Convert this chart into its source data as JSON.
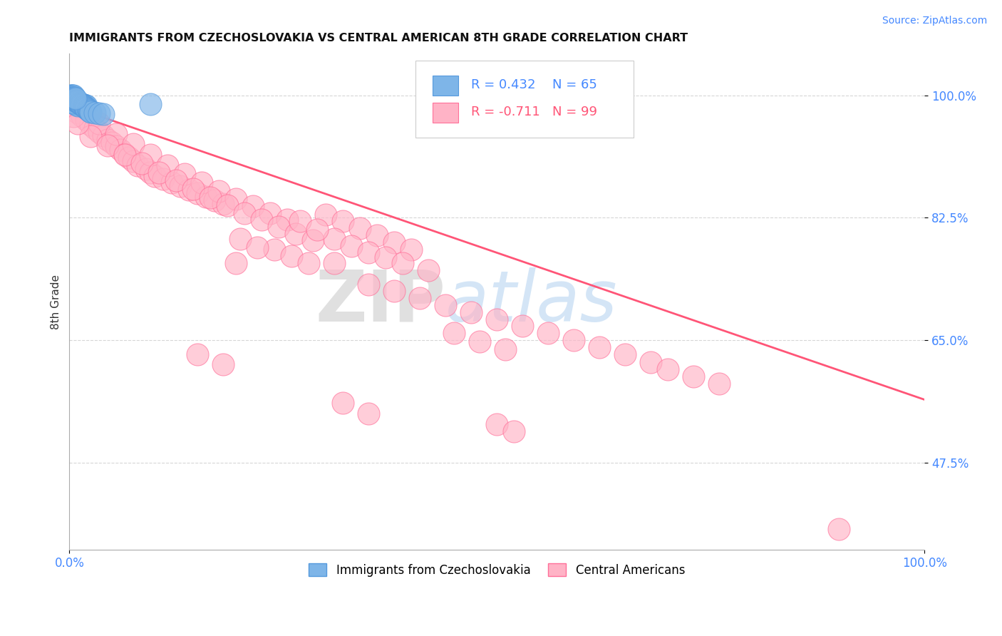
{
  "title": "IMMIGRANTS FROM CZECHOSLOVAKIA VS CENTRAL AMERICAN 8TH GRADE CORRELATION CHART",
  "source": "Source: ZipAtlas.com",
  "ylabel": "8th Grade",
  "xlim": [
    0.0,
    1.0
  ],
  "ylim": [
    0.35,
    1.06
  ],
  "ytick_vals": [
    0.475,
    0.65,
    0.825,
    1.0
  ],
  "ytick_labels": [
    "47.5%",
    "65.0%",
    "82.5%",
    "100.0%"
  ],
  "xtick_vals": [
    0.0,
    1.0
  ],
  "xtick_labels": [
    "0.0%",
    "100.0%"
  ],
  "legend_label1": "Immigrants from Czechoslovakia",
  "legend_label2": "Central Americans",
  "watermark_zip": "ZIP",
  "watermark_atlas": "atlas",
  "blue_color": "#7EB5E8",
  "blue_edge": "#5599DD",
  "pink_color": "#FFB3C6",
  "pink_edge": "#FF7099",
  "trend_color": "#FF5577",
  "trend_x": [
    0.0,
    1.0
  ],
  "trend_y": [
    0.985,
    0.565
  ],
  "blue_scatter": [
    [
      0.001,
      1.0
    ],
    [
      0.002,
      1.0
    ],
    [
      0.003,
      1.0
    ],
    [
      0.004,
      1.0
    ],
    [
      0.005,
      1.0
    ],
    [
      0.001,
      0.998
    ],
    [
      0.002,
      0.998
    ],
    [
      0.003,
      0.998
    ],
    [
      0.004,
      0.997
    ],
    [
      0.001,
      0.996
    ],
    [
      0.002,
      0.996
    ],
    [
      0.003,
      0.995
    ],
    [
      0.004,
      0.995
    ],
    [
      0.005,
      0.994
    ],
    [
      0.006,
      0.994
    ],
    [
      0.007,
      0.993
    ],
    [
      0.001,
      0.993
    ],
    [
      0.002,
      0.992
    ],
    [
      0.003,
      0.992
    ],
    [
      0.006,
      0.991
    ],
    [
      0.007,
      0.991
    ],
    [
      0.008,
      0.99
    ],
    [
      0.009,
      0.99
    ],
    [
      0.01,
      0.989
    ],
    [
      0.011,
      0.989
    ],
    [
      0.012,
      0.988
    ],
    [
      0.013,
      0.988
    ],
    [
      0.014,
      0.987
    ],
    [
      0.015,
      0.987
    ],
    [
      0.016,
      0.986
    ],
    [
      0.017,
      0.986
    ],
    [
      0.018,
      0.985
    ],
    [
      0.019,
      0.985
    ],
    [
      0.02,
      0.985
    ],
    [
      0.005,
      0.99
    ],
    [
      0.006,
      0.989
    ],
    [
      0.007,
      0.988
    ],
    [
      0.008,
      0.987
    ],
    [
      0.009,
      0.986
    ],
    [
      0.01,
      0.985
    ],
    [
      0.003,
      0.991
    ],
    [
      0.004,
      0.99
    ],
    [
      0.008,
      0.992
    ],
    [
      0.009,
      0.992
    ],
    [
      0.01,
      0.991
    ],
    [
      0.011,
      0.99
    ],
    [
      0.012,
      0.989
    ],
    [
      0.013,
      0.988
    ],
    [
      0.014,
      0.987
    ],
    [
      0.015,
      0.986
    ],
    [
      0.016,
      0.985
    ],
    [
      0.017,
      0.984
    ],
    [
      0.018,
      0.983
    ],
    [
      0.019,
      0.982
    ],
    [
      0.02,
      0.981
    ],
    [
      0.021,
      0.98
    ],
    [
      0.022,
      0.979
    ],
    [
      0.023,
      0.978
    ],
    [
      0.024,
      0.977
    ],
    [
      0.025,
      0.976
    ],
    [
      0.095,
      0.988
    ],
    [
      0.03,
      0.975
    ],
    [
      0.035,
      0.974
    ],
    [
      0.04,
      0.973
    ],
    [
      0.006,
      0.997
    ],
    [
      0.007,
      0.996
    ]
  ],
  "pink_scatter": [
    [
      0.005,
      0.985
    ],
    [
      0.01,
      0.975
    ],
    [
      0.015,
      0.97
    ],
    [
      0.02,
      0.965
    ],
    [
      0.025,
      0.958
    ],
    [
      0.03,
      0.953
    ],
    [
      0.035,
      0.948
    ],
    [
      0.04,
      0.943
    ],
    [
      0.045,
      0.937
    ],
    [
      0.05,
      0.932
    ],
    [
      0.055,
      0.927
    ],
    [
      0.06,
      0.922
    ],
    [
      0.065,
      0.916
    ],
    [
      0.07,
      0.911
    ],
    [
      0.075,
      0.906
    ],
    [
      0.08,
      0.9
    ],
    [
      0.09,
      0.895
    ],
    [
      0.095,
      0.89
    ],
    [
      0.1,
      0.885
    ],
    [
      0.11,
      0.88
    ],
    [
      0.12,
      0.875
    ],
    [
      0.13,
      0.87
    ],
    [
      0.14,
      0.865
    ],
    [
      0.15,
      0.86
    ],
    [
      0.16,
      0.855
    ],
    [
      0.17,
      0.85
    ],
    [
      0.18,
      0.845
    ],
    [
      0.035,
      0.96
    ],
    [
      0.055,
      0.945
    ],
    [
      0.075,
      0.93
    ],
    [
      0.095,
      0.915
    ],
    [
      0.115,
      0.9
    ],
    [
      0.135,
      0.888
    ],
    [
      0.155,
      0.875
    ],
    [
      0.175,
      0.863
    ],
    [
      0.195,
      0.852
    ],
    [
      0.215,
      0.842
    ],
    [
      0.235,
      0.832
    ],
    [
      0.255,
      0.822
    ],
    [
      0.025,
      0.942
    ],
    [
      0.045,
      0.928
    ],
    [
      0.065,
      0.915
    ],
    [
      0.085,
      0.903
    ],
    [
      0.105,
      0.89
    ],
    [
      0.125,
      0.878
    ],
    [
      0.145,
      0.866
    ],
    [
      0.165,
      0.854
    ],
    [
      0.185,
      0.843
    ],
    [
      0.205,
      0.832
    ],
    [
      0.225,
      0.822
    ],
    [
      0.245,
      0.812
    ],
    [
      0.265,
      0.802
    ],
    [
      0.285,
      0.793
    ],
    [
      0.3,
      0.83
    ],
    [
      0.32,
      0.82
    ],
    [
      0.34,
      0.81
    ],
    [
      0.36,
      0.8
    ],
    [
      0.38,
      0.79
    ],
    [
      0.4,
      0.78
    ],
    [
      0.31,
      0.795
    ],
    [
      0.33,
      0.785
    ],
    [
      0.35,
      0.775
    ],
    [
      0.37,
      0.768
    ],
    [
      0.39,
      0.76
    ],
    [
      0.42,
      0.75
    ],
    [
      0.27,
      0.82
    ],
    [
      0.29,
      0.808
    ],
    [
      0.31,
      0.76
    ],
    [
      0.24,
      0.78
    ],
    [
      0.26,
      0.77
    ],
    [
      0.28,
      0.76
    ],
    [
      0.2,
      0.795
    ],
    [
      0.22,
      0.783
    ],
    [
      0.195,
      0.76
    ],
    [
      0.35,
      0.73
    ],
    [
      0.38,
      0.72
    ],
    [
      0.41,
      0.71
    ],
    [
      0.44,
      0.7
    ],
    [
      0.47,
      0.69
    ],
    [
      0.5,
      0.68
    ],
    [
      0.53,
      0.67
    ],
    [
      0.56,
      0.66
    ],
    [
      0.59,
      0.65
    ],
    [
      0.62,
      0.64
    ],
    [
      0.65,
      0.63
    ],
    [
      0.68,
      0.618
    ],
    [
      0.7,
      0.608
    ],
    [
      0.73,
      0.598
    ],
    [
      0.76,
      0.588
    ],
    [
      0.45,
      0.66
    ],
    [
      0.48,
      0.648
    ],
    [
      0.51,
      0.637
    ],
    [
      0.15,
      0.63
    ],
    [
      0.18,
      0.615
    ],
    [
      0.32,
      0.56
    ],
    [
      0.35,
      0.545
    ],
    [
      0.5,
      0.53
    ],
    [
      0.52,
      0.52
    ],
    [
      0.9,
      0.38
    ],
    [
      0.005,
      0.97
    ],
    [
      0.01,
      0.96
    ]
  ]
}
